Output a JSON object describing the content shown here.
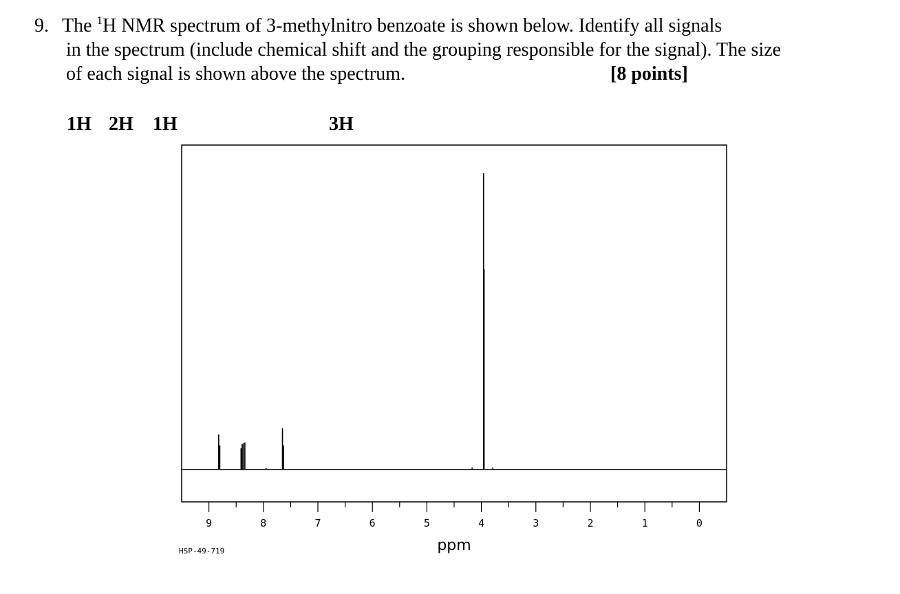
{
  "question": {
    "number": "9.",
    "lines": [
      [
        "The ",
        "1",
        "H NMR spectrum of 3-methylnitro benzoate is shown below. Identify all signals"
      ],
      [
        "in the spectrum (include chemical shift and the grouping responsible for the signal). The size"
      ],
      [
        "of each signal is shown above the spectrum."
      ]
    ],
    "points": "[8 points]"
  },
  "integrations": [
    "1H",
    "2H",
    "1H",
    "3H"
  ],
  "chart_data": {
    "type": "spectrum",
    "xlabel": "ppm",
    "code": "HSP-49-719",
    "xlim": [
      9.5,
      -0.5
    ],
    "ylim": [
      -10,
      100
    ],
    "xticks": [
      9,
      8,
      7,
      6,
      5,
      4,
      3,
      2,
      1,
      0
    ],
    "minor_xticks": [
      8.5,
      7.5,
      6.5,
      5.5,
      4.5,
      3.5,
      2.5,
      1.5,
      0.5
    ],
    "color": "#000000",
    "peaks": {
      "ppm": [
        8.82,
        8.8,
        8.41,
        8.39,
        8.37,
        8.34,
        7.65,
        7.63,
        7.95,
        3.96,
        3.95,
        4.17,
        3.79
      ],
      "intensity": [
        10.8,
        7.4,
        6.5,
        7.8,
        8.1,
        8.3,
        12.7,
        7.4,
        0.4,
        91.3,
        61.7,
        0.6,
        0.6
      ]
    }
  }
}
